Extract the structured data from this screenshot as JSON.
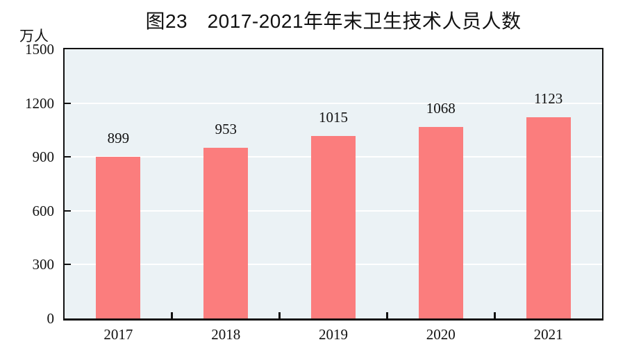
{
  "chart_data": {
    "type": "bar",
    "title": "图23　2017-2021年年末卫生技术人员人数",
    "unit_label": "万人",
    "categories": [
      "2017",
      "2018",
      "2019",
      "2020",
      "2021"
    ],
    "values": [
      899,
      953,
      1015,
      1068,
      1123
    ],
    "series_name": "年末卫生技术人员人数",
    "xlabel": "",
    "ylabel": "万人",
    "ylim": [
      0,
      1500
    ],
    "yticks": [
      0,
      300,
      600,
      900,
      1200,
      1500
    ],
    "grid": "horizontal-white-lines-at-ticks",
    "legend": "none",
    "data_labels_shown": true,
    "colors": {
      "bar": "#fb7d7d",
      "plot_background": "#ebf2f5",
      "gridline": "#ffffff",
      "axis": "#111111",
      "title_text": "#111111",
      "label_text": "#111111",
      "page_background": "#ffffff"
    }
  }
}
